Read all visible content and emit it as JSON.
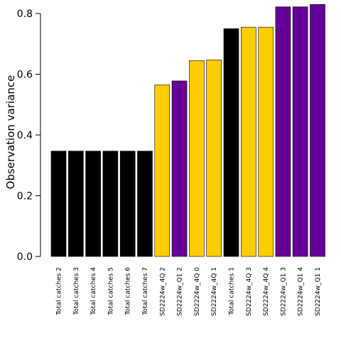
{
  "chart_data": {
    "type": "bar",
    "title": "",
    "xlabel": "",
    "ylabel": "Observation variance",
    "ylim": [
      0,
      0.8
    ],
    "yticks": [
      "0.0",
      "0.2",
      "0.4",
      "0.6",
      "0.8"
    ],
    "grid": false,
    "categories": [
      "Total catches 2",
      "Total catches 3",
      "Total catches 4",
      "Total catches 5",
      "Total catches 6",
      "Total catches 7",
      "SD2224w_4Q 2",
      "SD2224w_Q1 2",
      "SD2224w_4Q 0",
      "SD2224w_4Q 1",
      "Total catches 1",
      "SD2224w_4Q 3",
      "SD2224w_4Q 4",
      "SD2224w_Q1 3",
      "SD2224w_Q1 4",
      "SD2224w_Q1 1"
    ],
    "values": [
      0.347,
      0.347,
      0.347,
      0.347,
      0.347,
      0.347,
      0.565,
      0.578,
      0.645,
      0.647,
      0.75,
      0.755,
      0.755,
      0.822,
      0.822,
      0.83
    ],
    "colors": [
      "#000000",
      "#000000",
      "#000000",
      "#000000",
      "#000000",
      "#000000",
      "#FFCC00",
      "#660099",
      "#FFCC00",
      "#FFCC00",
      "#000000",
      "#FFCC00",
      "#FFCC00",
      "#660099",
      "#660099",
      "#660099"
    ]
  }
}
